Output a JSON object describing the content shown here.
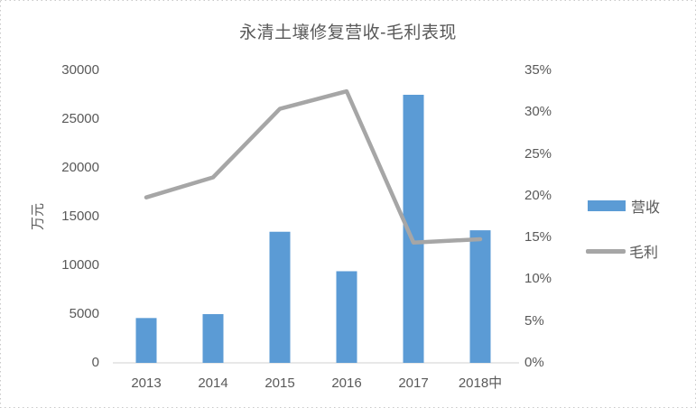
{
  "frame": {
    "background": "#ffffff",
    "border_color": "#c9c9c9",
    "border_style": "dotted"
  },
  "text_color": "#595959",
  "axis_line_color": "#d9d9d9",
  "chart_data": {
    "type": "bar",
    "subtype": "combo-bar-line",
    "title": "永清土壤修复营收-毛利表现",
    "categories": [
      "2013",
      "2014",
      "2015",
      "2016",
      "2017",
      "2018中"
    ],
    "series": [
      {
        "name": "营收",
        "type": "bar",
        "axis": "left",
        "unit": "万元",
        "color": "#5B9BD5",
        "values": [
          4600,
          5000,
          13450,
          9400,
          27500,
          13600
        ]
      },
      {
        "name": "毛利",
        "type": "line",
        "axis": "right",
        "unit": "%",
        "color": "#A6A6A6",
        "values": [
          19.8,
          22.2,
          30.4,
          32.5,
          14.4,
          14.8
        ]
      }
    ],
    "left_axis": {
      "label": "万元",
      "min": 0,
      "max": 30000,
      "step": 5000,
      "ticks": [
        "0",
        "5000",
        "10000",
        "15000",
        "20000",
        "25000",
        "30000"
      ]
    },
    "right_axis": {
      "min": 0,
      "max": 35,
      "step": 5,
      "ticks": [
        "0%",
        "5%",
        "10%",
        "15%",
        "20%",
        "25%",
        "30%",
        "35%"
      ]
    },
    "legend": {
      "position": "right",
      "items": [
        {
          "label": "营收",
          "color": "#5B9BD5",
          "marker": "bar"
        },
        {
          "label": "毛利",
          "color": "#A6A6A6",
          "marker": "line"
        }
      ]
    },
    "grid": false
  }
}
